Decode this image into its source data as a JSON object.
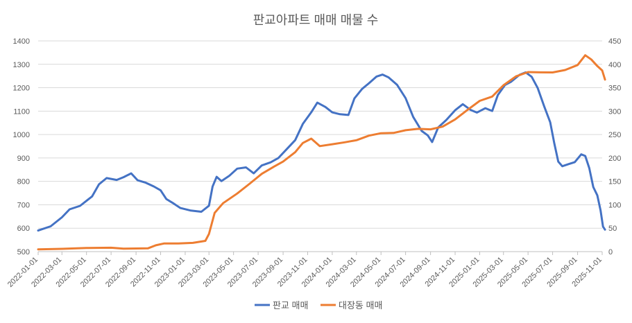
{
  "chart_data": {
    "type": "line",
    "title": "판교아파트 매매 매물 수",
    "x_tick_labels": [
      "2022-01-01",
      "2022-03-01",
      "2022-05-01",
      "2022-07-01",
      "2022-09-01",
      "2022-11-01",
      "2023-01-01",
      "2023-03-01",
      "2023-05-01",
      "2023-07-01",
      "2023-09-01",
      "2023-11-01",
      "2024-01-01",
      "2024-03-01",
      "2024-05-01",
      "2024-07-01",
      "2024-09-01",
      "2024-11-01",
      "2025-01-01",
      "2025-03-01",
      "2025-05-01",
      "2025-07-01",
      "2025-09-01",
      "2025-11-01"
    ],
    "y_left": {
      "range": [
        500,
        1400
      ],
      "ticks": [
        500,
        600,
        700,
        800,
        900,
        1000,
        1100,
        1200,
        1300,
        1400
      ]
    },
    "y_right": {
      "range": [
        0,
        450
      ],
      "ticks": [
        0,
        50,
        100,
        150,
        200,
        250,
        300,
        350,
        400,
        450
      ]
    },
    "series": [
      {
        "name": "판교 매매",
        "axis": "left",
        "color": "#4472C4",
        "points": [
          [
            "2022-01-01",
            590
          ],
          [
            "2022-02-01",
            610
          ],
          [
            "2022-03-01",
            650
          ],
          [
            "2022-03-20",
            685
          ],
          [
            "2022-04-15",
            700
          ],
          [
            "2022-05-15",
            740
          ],
          [
            "2022-06-01",
            790
          ],
          [
            "2022-06-20",
            815
          ],
          [
            "2022-07-15",
            805
          ],
          [
            "2022-08-01",
            815
          ],
          [
            "2022-08-20",
            830
          ],
          [
            "2022-09-05",
            800
          ],
          [
            "2022-09-25",
            790
          ],
          [
            "2022-10-15",
            775
          ],
          [
            "2022-11-01",
            760
          ],
          [
            "2022-11-15",
            725
          ],
          [
            "2022-12-01",
            710
          ],
          [
            "2022-12-20",
            690
          ],
          [
            "2023-01-15",
            680
          ],
          [
            "2023-02-10",
            675
          ],
          [
            "2023-03-01",
            700
          ],
          [
            "2023-03-10",
            780
          ],
          [
            "2023-03-20",
            820
          ],
          [
            "2023-04-01",
            800
          ],
          [
            "2023-04-20",
            820
          ],
          [
            "2023-05-10",
            850
          ],
          [
            "2023-06-01",
            855
          ],
          [
            "2023-06-20",
            830
          ],
          [
            "2023-07-10",
            865
          ],
          [
            "2023-08-01",
            880
          ],
          [
            "2023-08-20",
            900
          ],
          [
            "2023-09-10",
            940
          ],
          [
            "2023-10-01",
            980
          ],
          [
            "2023-10-20",
            1050
          ],
          [
            "2023-11-10",
            1100
          ],
          [
            "2023-11-25",
            1140
          ],
          [
            "2023-12-15",
            1120
          ],
          [
            "2024-01-01",
            1095
          ],
          [
            "2024-01-20",
            1085
          ],
          [
            "2024-02-10",
            1080
          ],
          [
            "2024-02-25",
            1150
          ],
          [
            "2024-03-15",
            1190
          ],
          [
            "2024-04-01",
            1215
          ],
          [
            "2024-04-20",
            1245
          ],
          [
            "2024-05-05",
            1255
          ],
          [
            "2024-05-20",
            1245
          ],
          [
            "2024-06-10",
            1215
          ],
          [
            "2024-07-01",
            1160
          ],
          [
            "2024-07-20",
            1080
          ],
          [
            "2024-08-10",
            1020
          ],
          [
            "2024-08-25",
            1000
          ],
          [
            "2024-09-05",
            970
          ],
          [
            "2024-09-20",
            1030
          ],
          [
            "2024-10-10",
            1060
          ],
          [
            "2024-11-01",
            1100
          ],
          [
            "2024-11-20",
            1125
          ],
          [
            "2024-12-10",
            1100
          ],
          [
            "2024-12-25",
            1090
          ],
          [
            "2025-01-15",
            1110
          ],
          [
            "2025-02-01",
            1100
          ],
          [
            "2025-02-15",
            1170
          ],
          [
            "2025-03-05",
            1215
          ],
          [
            "2025-03-20",
            1230
          ],
          [
            "2025-04-10",
            1260
          ],
          [
            "2025-04-25",
            1270
          ],
          [
            "2025-05-10",
            1250
          ],
          [
            "2025-05-25",
            1200
          ],
          [
            "2025-06-10",
            1120
          ],
          [
            "2025-06-25",
            1050
          ],
          [
            "2025-07-05",
            960
          ],
          [
            "2025-07-15",
            880
          ],
          [
            "2025-07-25",
            860
          ],
          [
            "2025-08-10",
            870
          ],
          [
            "2025-08-25",
            880
          ],
          [
            "2025-09-10",
            915
          ],
          [
            "2025-09-20",
            910
          ],
          [
            "2025-09-30",
            860
          ],
          [
            "2025-10-10",
            780
          ],
          [
            "2025-10-20",
            745
          ],
          [
            "2025-10-28",
            680
          ],
          [
            "2025-11-03",
            610
          ],
          [
            "2025-11-08",
            595
          ]
        ]
      },
      {
        "name": "대장동 매매",
        "axis": "right",
        "color": "#ED7D31",
        "points": [
          [
            "2022-01-01",
            5
          ],
          [
            "2022-03-01",
            5
          ],
          [
            "2022-05-01",
            6
          ],
          [
            "2022-07-01",
            6
          ],
          [
            "2022-08-01",
            4
          ],
          [
            "2022-10-01",
            5
          ],
          [
            "2022-10-20",
            12
          ],
          [
            "2022-11-10",
            17
          ],
          [
            "2022-12-15",
            18
          ],
          [
            "2023-01-20",
            20
          ],
          [
            "2023-02-20",
            25
          ],
          [
            "2023-03-01",
            40
          ],
          [
            "2023-03-15",
            85
          ],
          [
            "2023-04-05",
            105
          ],
          [
            "2023-05-10",
            125
          ],
          [
            "2023-06-10",
            145
          ],
          [
            "2023-07-10",
            165
          ],
          [
            "2023-08-10",
            180
          ],
          [
            "2023-09-01",
            190
          ],
          [
            "2023-10-01",
            210
          ],
          [
            "2023-10-20",
            230
          ],
          [
            "2023-11-10",
            240
          ],
          [
            "2023-12-01",
            225
          ],
          [
            "2024-01-01",
            230
          ],
          [
            "2024-02-01",
            235
          ],
          [
            "2024-03-01",
            240
          ],
          [
            "2024-04-01",
            250
          ],
          [
            "2024-05-01",
            255
          ],
          [
            "2024-06-01",
            255
          ],
          [
            "2024-07-01",
            260
          ],
          [
            "2024-08-01",
            262
          ],
          [
            "2024-09-01",
            260
          ],
          [
            "2024-10-01",
            265
          ],
          [
            "2024-11-01",
            280
          ],
          [
            "2024-12-01",
            300
          ],
          [
            "2025-01-01",
            320
          ],
          [
            "2025-02-01",
            330
          ],
          [
            "2025-03-01",
            355
          ],
          [
            "2025-04-01",
            375
          ],
          [
            "2025-05-01",
            385
          ],
          [
            "2025-06-01",
            385
          ],
          [
            "2025-07-01",
            385
          ],
          [
            "2025-08-01",
            390
          ],
          [
            "2025-09-01",
            400
          ],
          [
            "2025-09-20",
            420
          ],
          [
            "2025-10-05",
            410
          ],
          [
            "2025-10-20",
            395
          ],
          [
            "2025-11-01",
            385
          ],
          [
            "2025-11-08",
            365
          ]
        ]
      }
    ],
    "legend": {
      "position": "bottom",
      "entries": [
        "판교 매매",
        "대장동 매매"
      ]
    },
    "grid": "horizontal",
    "xlabel": "",
    "ylabel": ""
  }
}
